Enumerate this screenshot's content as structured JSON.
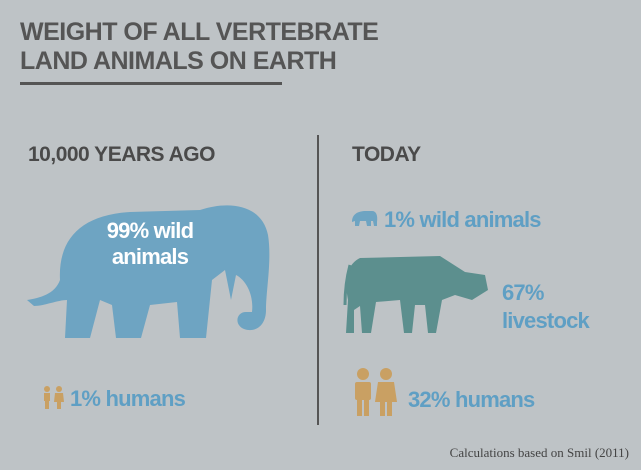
{
  "header": {
    "title_lines": [
      "WEIGHT OF ALL VERTEBRATE",
      "LAND ANIMALS ON EARTH"
    ]
  },
  "past": {
    "heading": "10,000 YEARS AGO",
    "wild_label": "99% wild animals",
    "humans_label": "1% humans"
  },
  "today": {
    "heading": "TODAY",
    "wild_label": "1% wild animals",
    "livestock_label": "67% livestock",
    "humans_label": "32% humans"
  },
  "footer": {
    "source": "Calculations based on Smil (2011)"
  }
}
